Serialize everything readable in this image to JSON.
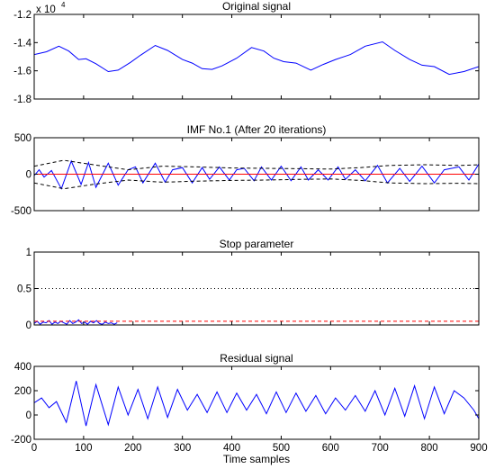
{
  "chart_data": [
    {
      "type": "line",
      "title": "Original signal",
      "ylim": [
        -18000,
        -12000
      ],
      "y_ticks": [
        -12000,
        -14000,
        -16000,
        -18000
      ],
      "y_tick_labels": [
        "-1.2",
        "-1.4",
        "-1.6",
        "-1.8"
      ],
      "y_exponent_label": "x 10",
      "y_exponent_power": "4",
      "xlim": [
        0,
        900
      ],
      "series": [
        {
          "color": "#0000ff",
          "style": "solid",
          "x": [
            0,
            25,
            50,
            70,
            90,
            105,
            125,
            150,
            170,
            195,
            215,
            245,
            270,
            300,
            320,
            340,
            360,
            380,
            410,
            440,
            465,
            485,
            505,
            530,
            560,
            585,
            610,
            640,
            670,
            705,
            730,
            760,
            785,
            810,
            840,
            870,
            900
          ],
          "y": [
            -14850,
            -14650,
            -14250,
            -14600,
            -15200,
            -15150,
            -15500,
            -16050,
            -15950,
            -15400,
            -14900,
            -14200,
            -14550,
            -15200,
            -15450,
            -15850,
            -15900,
            -15650,
            -15100,
            -14350,
            -14600,
            -15100,
            -15350,
            -15450,
            -15950,
            -15550,
            -15200,
            -14850,
            -14250,
            -13950,
            -14550,
            -15200,
            -15600,
            -15700,
            -16250,
            -16050,
            -15700
          ]
        }
      ]
    },
    {
      "type": "line",
      "title": "IMF No.1 (After 20 iterations)",
      "ylim": [
        -500,
        500
      ],
      "y_ticks": [
        500,
        0,
        -500
      ],
      "y_tick_labels": [
        "500",
        "0",
        "-500"
      ],
      "xlim": [
        0,
        900
      ],
      "series": [
        {
          "color": "#0000ff",
          "style": "solid",
          "x": [
            0,
            10,
            20,
            35,
            55,
            75,
            95,
            110,
            125,
            150,
            170,
            190,
            205,
            220,
            245,
            265,
            280,
            300,
            320,
            340,
            355,
            375,
            395,
            410,
            425,
            445,
            460,
            480,
            500,
            520,
            540,
            555,
            575,
            595,
            615,
            630,
            650,
            670,
            695,
            715,
            740,
            760,
            785,
            810,
            830,
            860,
            880,
            900
          ],
          "y": [
            -20,
            60,
            -40,
            50,
            -200,
            180,
            -140,
            160,
            -180,
            150,
            -150,
            60,
            100,
            -120,
            150,
            -110,
            60,
            90,
            -120,
            90,
            -70,
            100,
            -80,
            60,
            80,
            -90,
            100,
            -80,
            110,
            -90,
            100,
            -80,
            60,
            -80,
            100,
            -70,
            60,
            -90,
            120,
            -120,
            80,
            -100,
            110,
            -120,
            60,
            100,
            -80,
            140
          ]
        },
        {
          "color": "#000000",
          "style": "dashed",
          "x": [
            0,
            60,
            120,
            190,
            260,
            330,
            400,
            470,
            540,
            600,
            660,
            720,
            790,
            860,
            900
          ],
          "y": [
            110,
            190,
            130,
            60,
            110,
            100,
            85,
            80,
            75,
            70,
            90,
            120,
            130,
            120,
            130
          ]
        },
        {
          "color": "#000000",
          "style": "dashed",
          "x": [
            0,
            60,
            120,
            190,
            260,
            330,
            400,
            470,
            540,
            600,
            660,
            720,
            790,
            860,
            900
          ],
          "y": [
            -120,
            -200,
            -140,
            -80,
            -110,
            -95,
            -85,
            -80,
            -70,
            -65,
            -85,
            -120,
            -130,
            -125,
            -130
          ]
        },
        {
          "color": "#ff0000",
          "style": "solid",
          "x": [
            0,
            900
          ],
          "y": [
            0,
            0
          ]
        }
      ]
    },
    {
      "type": "line",
      "title": "Stop parameter",
      "ylim": [
        0,
        1
      ],
      "y_ticks": [
        1,
        0.5,
        0
      ],
      "y_tick_labels": [
        "1",
        "0.5",
        "0"
      ],
      "xlim": [
        0,
        900
      ],
      "series": [
        {
          "color": "#0000ff",
          "style": "solid",
          "x": [
            0,
            6,
            12,
            18,
            24,
            30,
            36,
            42,
            48,
            54,
            60,
            66,
            72,
            78,
            84,
            90,
            96,
            102,
            108,
            114,
            120,
            126,
            132,
            138,
            144,
            150,
            156,
            162,
            168
          ],
          "y": [
            0.02,
            0.05,
            0.01,
            0.04,
            0.03,
            0.06,
            0.01,
            0.04,
            0.02,
            0.05,
            0.03,
            0.01,
            0.06,
            0.02,
            0.04,
            0.07,
            0.02,
            0.04,
            0.01,
            0.05,
            0.03,
            0.06,
            0.02,
            0.01,
            0.04,
            0.02,
            0.03,
            0.01,
            0.03
          ]
        },
        {
          "color": "#ff0000",
          "style": "dashed",
          "x": [
            0,
            900
          ],
          "y": [
            0.05,
            0.05
          ]
        },
        {
          "color": "#000000",
          "style": "dotted",
          "x": [
            0,
            900
          ],
          "y": [
            0.5,
            0.5
          ]
        }
      ]
    },
    {
      "type": "line",
      "title": "Residual signal",
      "ylim": [
        -200,
        400
      ],
      "y_ticks": [
        400,
        200,
        0,
        -200
      ],
      "y_tick_labels": [
        "400",
        "200",
        "0",
        "-200"
      ],
      "xlim": [
        0,
        900
      ],
      "x_ticks": [
        0,
        100,
        200,
        300,
        400,
        500,
        600,
        700,
        800,
        900
      ],
      "x_tick_labels": [
        "0",
        "100",
        "200",
        "300",
        "400",
        "500",
        "600",
        "700",
        "800",
        "900"
      ],
      "xlabel": "Time samples",
      "series": [
        {
          "color": "#0000ff",
          "style": "solid",
          "x": [
            0,
            15,
            30,
            45,
            65,
            85,
            105,
            125,
            150,
            170,
            190,
            210,
            230,
            250,
            270,
            290,
            310,
            330,
            350,
            370,
            390,
            410,
            430,
            450,
            470,
            490,
            510,
            530,
            550,
            570,
            590,
            610,
            630,
            650,
            670,
            690,
            710,
            730,
            750,
            770,
            790,
            810,
            830,
            850,
            870,
            890,
            900
          ],
          "y": [
            100,
            140,
            60,
            110,
            -60,
            280,
            -90,
            250,
            -80,
            230,
            0,
            210,
            -30,
            230,
            -20,
            210,
            40,
            170,
            20,
            190,
            20,
            180,
            40,
            170,
            10,
            190,
            20,
            180,
            30,
            160,
            10,
            140,
            40,
            160,
            30,
            200,
            0,
            220,
            -10,
            240,
            -30,
            230,
            10,
            200,
            140,
            40,
            -30
          ]
        }
      ]
    }
  ]
}
